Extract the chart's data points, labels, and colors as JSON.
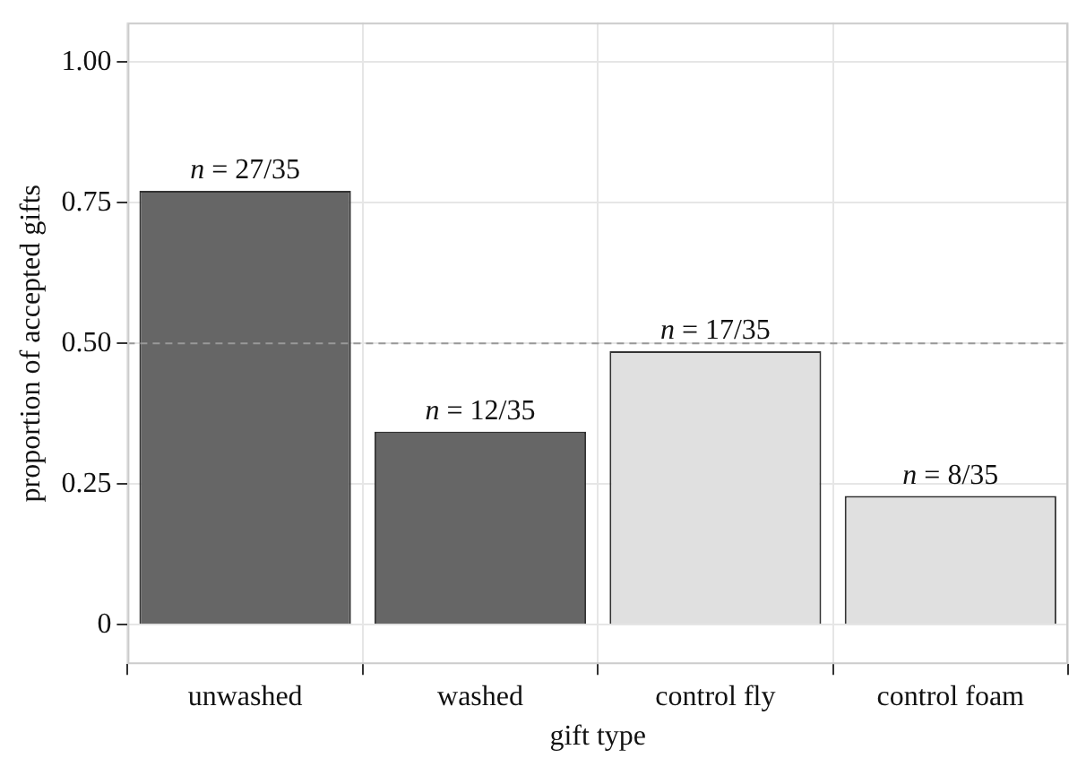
{
  "chart_data": {
    "type": "bar",
    "xlabel": "gift type",
    "ylabel": "proportion of accepted gifts",
    "categories": [
      "unwashed",
      "washed",
      "control fly",
      "control foam"
    ],
    "values": [
      0.771,
      0.343,
      0.486,
      0.229
    ],
    "colors": [
      "#666666",
      "#666666",
      "#e0e0e0",
      "#e0e0e0"
    ],
    "value_labels": [
      "n = 27/35",
      "n = 12/35",
      "n = 17/35",
      "n = 8/35"
    ],
    "ylim": [
      -0.07,
      1.07
    ],
    "yticks": [
      {
        "value": 0,
        "label": "0"
      },
      0.25,
      {
        "value": 0.5,
        "label": "0.50"
      },
      0.75,
      {
        "value": 1,
        "label": "1.00"
      }
    ],
    "ref_lines": [
      {
        "axis": "y",
        "value": 0.5,
        "color": "#999999",
        "line_style": "dashed"
      }
    ],
    "grid": true
  }
}
